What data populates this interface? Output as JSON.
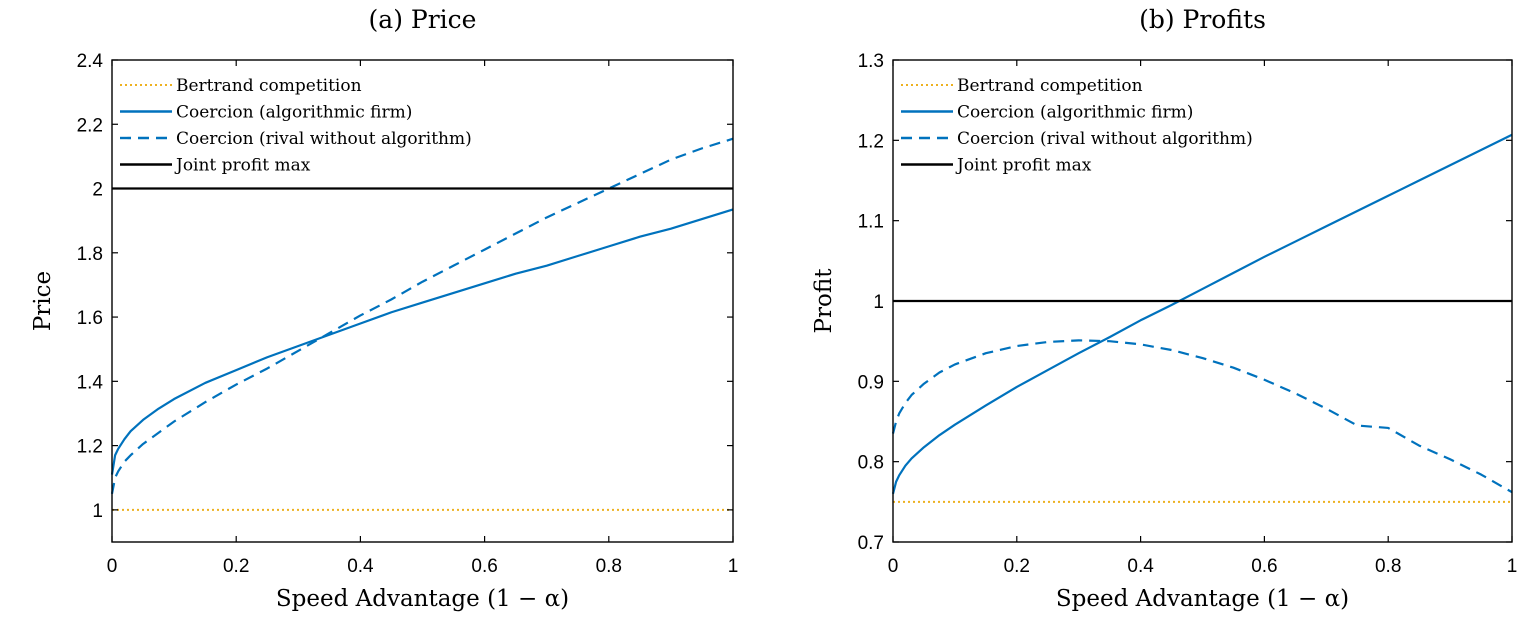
{
  "chart_data": [
    {
      "type": "line",
      "title": "(a) Price",
      "xlabel": "Speed Advantage (1 − α)",
      "ylabel": "Price",
      "xlim": [
        0,
        1
      ],
      "ylim": [
        0.9,
        2.4
      ],
      "xticks": [
        0,
        0.2,
        0.4,
        0.6,
        0.8,
        1
      ],
      "xtick_labels": [
        "0",
        "0.2",
        "0.4",
        "0.6",
        "0.8",
        "1"
      ],
      "yticks": [
        1,
        1.2,
        1.4,
        1.6,
        1.8,
        2,
        2.2,
        2.4
      ],
      "ytick_labels": [
        "1",
        "1.2",
        "1.4",
        "1.6",
        "1.8",
        "2",
        "2.2",
        "2.4"
      ],
      "legend_position": "top-left",
      "series": [
        {
          "name": "Bertrand competition",
          "style": "dotted",
          "color": "#EDB120",
          "x": [
            0,
            1
          ],
          "y": [
            1.0,
            1.0
          ]
        },
        {
          "name": "Coercion (algorithmic firm)",
          "style": "solid",
          "color": "#0072BD",
          "x": [
            0,
            0.005,
            0.01,
            0.02,
            0.03,
            0.05,
            0.075,
            0.1,
            0.15,
            0.2,
            0.25,
            0.3,
            0.35,
            0.4,
            0.45,
            0.5,
            0.55,
            0.6,
            0.65,
            0.7,
            0.75,
            0.8,
            0.85,
            0.9,
            0.95,
            1.0
          ],
          "y": [
            1.11,
            1.17,
            1.19,
            1.22,
            1.245,
            1.28,
            1.315,
            1.345,
            1.395,
            1.435,
            1.475,
            1.51,
            1.545,
            1.58,
            1.615,
            1.645,
            1.675,
            1.705,
            1.735,
            1.76,
            1.79,
            1.82,
            1.85,
            1.875,
            1.905,
            1.935
          ]
        },
        {
          "name": "Coercion (rival without algorithm)",
          "style": "dashed",
          "color": "#0072BD",
          "x": [
            0,
            0.005,
            0.01,
            0.02,
            0.03,
            0.05,
            0.075,
            0.1,
            0.15,
            0.2,
            0.25,
            0.3,
            0.35,
            0.4,
            0.45,
            0.5,
            0.55,
            0.6,
            0.65,
            0.7,
            0.75,
            0.8,
            0.85,
            0.9,
            0.95,
            1.0
          ],
          "y": [
            1.05,
            1.1,
            1.12,
            1.15,
            1.17,
            1.205,
            1.24,
            1.275,
            1.335,
            1.39,
            1.44,
            1.495,
            1.55,
            1.605,
            1.655,
            1.71,
            1.76,
            1.81,
            1.86,
            1.91,
            1.955,
            2.0,
            2.045,
            2.09,
            2.125,
            2.155
          ]
        },
        {
          "name": "Joint profit max",
          "style": "solid",
          "color": "#000000",
          "x": [
            0,
            1
          ],
          "y": [
            2.0,
            2.0
          ]
        }
      ]
    },
    {
      "type": "line",
      "title": "(b) Profits",
      "xlabel": "Speed Advantage (1 − α)",
      "ylabel": "Profit",
      "xlim": [
        0,
        1
      ],
      "ylim": [
        0.7,
        1.3
      ],
      "xticks": [
        0,
        0.2,
        0.4,
        0.6,
        0.8,
        1
      ],
      "xtick_labels": [
        "0",
        "0.2",
        "0.4",
        "0.6",
        "0.8",
        "1"
      ],
      "yticks": [
        0.7,
        0.8,
        0.9,
        1,
        1.1,
        1.2,
        1.3
      ],
      "ytick_labels": [
        "0.7",
        "0.8",
        "0.9",
        "1",
        "1.1",
        "1.2",
        "1.3"
      ],
      "legend_position": "top-left",
      "series": [
        {
          "name": "Bertrand competition",
          "style": "dotted",
          "color": "#EDB120",
          "x": [
            0,
            1
          ],
          "y": [
            0.75,
            0.75
          ]
        },
        {
          "name": "Coercion (algorithmic firm)",
          "style": "solid",
          "color": "#0072BD",
          "x": [
            0,
            0.005,
            0.01,
            0.02,
            0.03,
            0.05,
            0.075,
            0.1,
            0.15,
            0.2,
            0.25,
            0.3,
            0.35,
            0.4,
            0.45,
            0.5,
            0.55,
            0.6,
            0.65,
            0.7,
            0.75,
            0.8,
            0.85,
            0.9,
            0.95,
            1.0
          ],
          "y": [
            0.76,
            0.775,
            0.783,
            0.795,
            0.804,
            0.818,
            0.833,
            0.846,
            0.87,
            0.893,
            0.914,
            0.935,
            0.955,
            0.976,
            0.995,
            1.015,
            1.035,
            1.055,
            1.074,
            1.093,
            1.112,
            1.131,
            1.15,
            1.169,
            1.188,
            1.207
          ]
        },
        {
          "name": "Coercion (rival without algorithm)",
          "style": "dashed",
          "color": "#0072BD",
          "x": [
            0,
            0.005,
            0.01,
            0.02,
            0.03,
            0.05,
            0.075,
            0.1,
            0.15,
            0.2,
            0.25,
            0.3,
            0.35,
            0.4,
            0.45,
            0.5,
            0.55,
            0.6,
            0.65,
            0.7,
            0.75,
            0.8,
            0.85,
            0.9,
            0.95,
            1.0
          ],
          "y": [
            0.835,
            0.85,
            0.86,
            0.873,
            0.883,
            0.897,
            0.911,
            0.921,
            0.935,
            0.944,
            0.949,
            0.951,
            0.95,
            0.946,
            0.939,
            0.929,
            0.917,
            0.902,
            0.885,
            0.866,
            0.845,
            0.842,
            0.82,
            0.803,
            0.784,
            0.762
          ]
        },
        {
          "name": "Joint profit max",
          "style": "solid",
          "color": "#000000",
          "x": [
            0,
            1
          ],
          "y": [
            1.0,
            1.0
          ]
        }
      ]
    }
  ]
}
